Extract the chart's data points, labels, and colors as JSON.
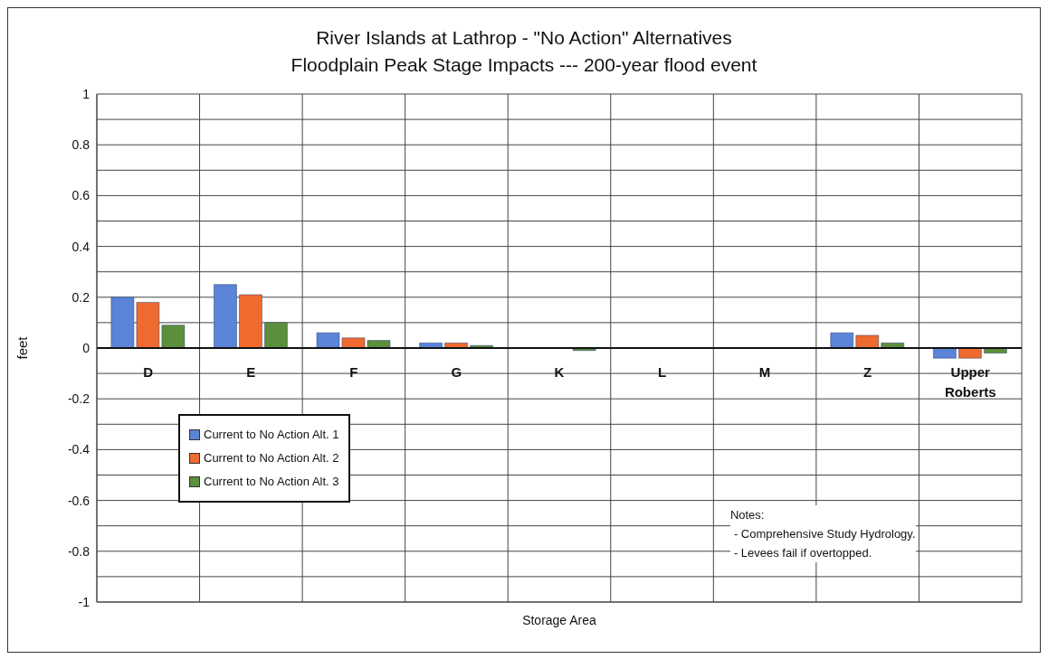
{
  "chart_data": {
    "type": "bar",
    "title": "River Islands at Lathrop - \"No Action\" Alternatives",
    "subtitle": "Floodplain Peak Stage Impacts --- 200-year flood event",
    "xlabel": "Storage Area",
    "ylabel": "feet",
    "categories": [
      "D",
      "E",
      "F",
      "G",
      "K",
      "L",
      "M",
      "Z",
      "Upper Roberts"
    ],
    "series": [
      {
        "name": "Current to No Action Alt. 1",
        "color": "#5b83d6",
        "values": [
          0.2,
          0.25,
          0.06,
          0.02,
          0,
          0,
          0,
          0.06,
          -0.04
        ]
      },
      {
        "name": "Current to No Action Alt. 2",
        "color": "#ee6a2e",
        "values": [
          0.18,
          0.21,
          0.04,
          0.02,
          0,
          0,
          0,
          0.05,
          -0.04
        ]
      },
      {
        "name": "Current to No Action Alt. 3",
        "color": "#5b8f3c",
        "values": [
          0.09,
          0.1,
          0.03,
          0.01,
          -0.01,
          0,
          0,
          0.02,
          -0.02
        ]
      }
    ],
    "ylim": [
      -1,
      1
    ],
    "yticks": [
      -1,
      {
        "value": -0.9,
        "label": null
      },
      -0.8,
      {
        "value": -0.7,
        "label": null
      },
      -0.6,
      {
        "value": -0.5,
        "label": null
      },
      -0.4,
      {
        "value": -0.3,
        "label": null
      },
      -0.2,
      {
        "value": -0.1,
        "label": null
      },
      0,
      {
        "value": 0.1,
        "label": null
      },
      0.2,
      {
        "value": 0.3,
        "label": null
      },
      0.4,
      {
        "value": 0.5,
        "label": null
      },
      0.6,
      {
        "value": 0.7,
        "label": null
      },
      0.8,
      {
        "value": 0.9,
        "label": null
      },
      1
    ],
    "grid": true,
    "legend": "bottom left",
    "annotations": [
      "Notes:",
      "- Comprehensive Study Hydrology.",
      "- Levees fail if overtopped."
    ]
  }
}
